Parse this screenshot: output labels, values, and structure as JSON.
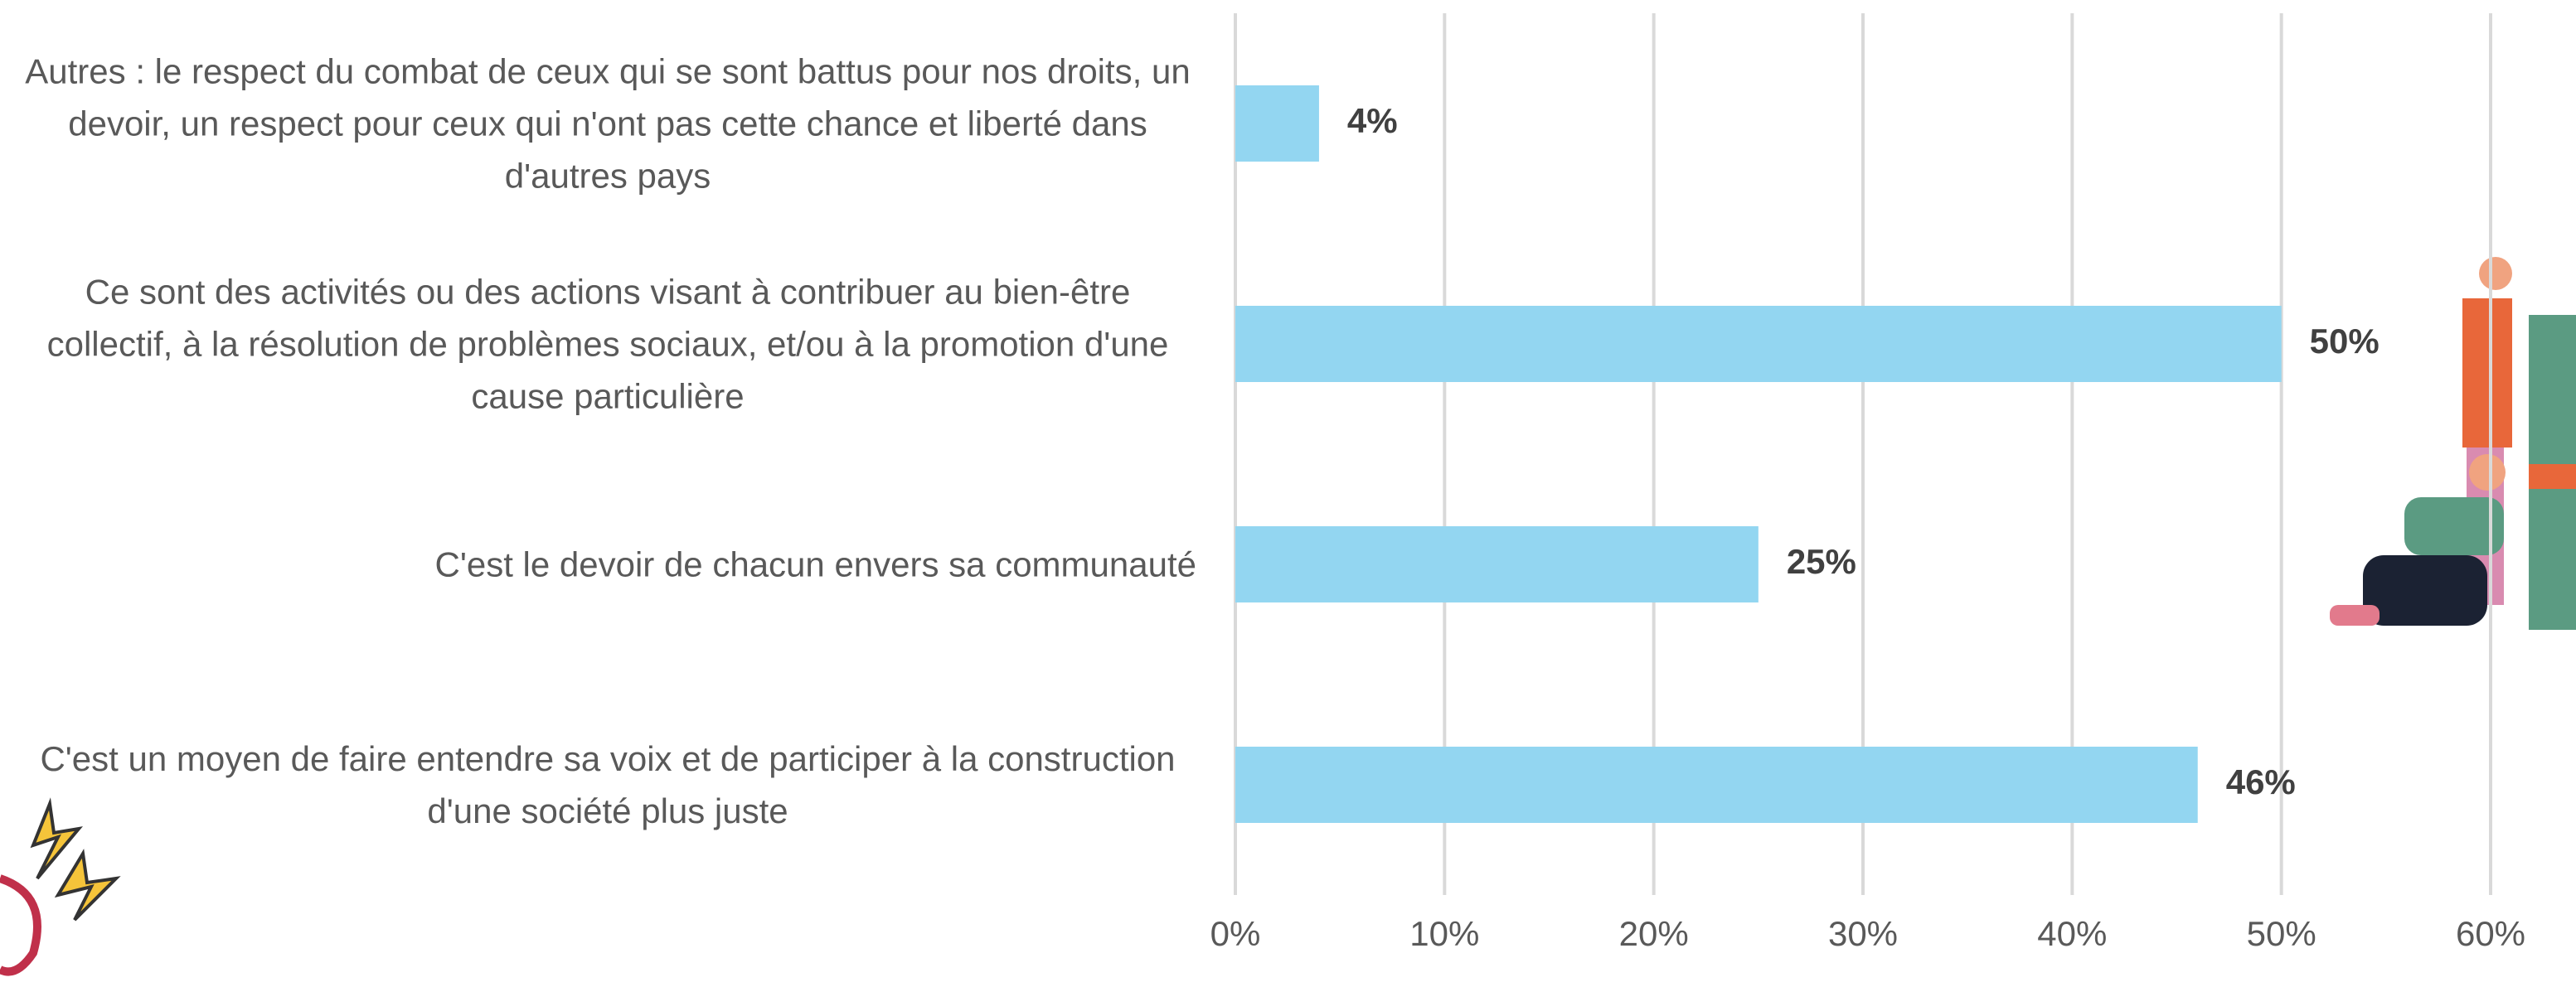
{
  "chart_data": {
    "type": "bar",
    "orientation": "horizontal",
    "categories": [
      "Autres : le respect du combat de ceux qui se sont battus pour nos droits, un devoir, un respect pour ceux qui n'ont pas cette chance et liberté dans d'autres pays",
      "Ce sont des activités ou des actions visant à contribuer au bien-être collectif, à la résolution de problèmes sociaux, et/ou à la promotion d'une cause particulière",
      "C'est le devoir de chacun envers sa communauté",
      "C'est un moyen de faire entendre sa voix et de participer à la construction d'une société plus juste"
    ],
    "values": [
      4,
      50,
      25,
      46
    ],
    "value_labels": [
      "4%",
      "50%",
      "25%",
      "46%"
    ],
    "color": "#93d6f1",
    "xlim": [
      0,
      60
    ],
    "xticks": [
      {
        "value": 0,
        "label": "0%"
      },
      {
        "value": 10,
        "label": "10%"
      },
      {
        "value": 20,
        "label": "20%"
      },
      {
        "value": 30,
        "label": "30%"
      },
      {
        "value": 40,
        "label": "40%"
      },
      {
        "value": 50,
        "label": "50%"
      },
      {
        "value": 60,
        "label": "60%"
      }
    ],
    "grid": true
  }
}
